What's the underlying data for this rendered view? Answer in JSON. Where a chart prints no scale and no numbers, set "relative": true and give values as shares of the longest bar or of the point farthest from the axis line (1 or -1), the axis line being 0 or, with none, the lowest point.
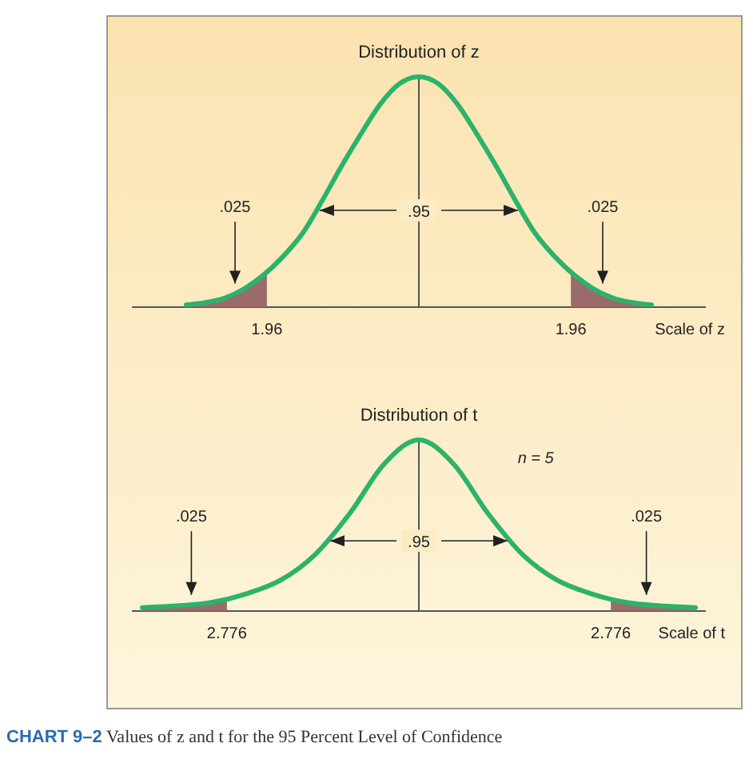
{
  "chart_data": [
    {
      "type": "line",
      "title": "Distribution of z",
      "xlabel": "Scale of z",
      "relative": true,
      "xlim": [
        -3.7,
        3.7
      ],
      "xticks": [
        {
          "value": -1.96,
          "label": "1.96"
        },
        1.96
      ],
      "series": [
        {
          "color": "#2bb36a",
          "x": [
            -3,
            -2.75,
            -2.5,
            -2.25,
            -2,
            -1.75,
            -1.5,
            -1.25,
            -1,
            -0.75,
            -0.5,
            -0.25,
            0,
            0.25,
            0.5,
            0.75,
            1,
            1.25,
            1.5,
            1.75,
            2,
            2.25,
            2.5,
            2.75,
            3
          ],
          "values": [
            0.01,
            0.02,
            0.04,
            0.08,
            0.14,
            0.22,
            0.32,
            0.46,
            0.61,
            0.75,
            0.88,
            0.97,
            1,
            0.97,
            0.88,
            0.75,
            0.61,
            0.46,
            0.32,
            0.22,
            0.14,
            0.08,
            0.04,
            0.02,
            0.01
          ]
        },
        {
          "type": "area",
          "color": "#9a6b6b",
          "x": [
            -3,
            -2.75,
            -2.5,
            -2.25,
            -1.96
          ],
          "values": [
            0.01,
            0.02,
            0.04,
            0.08,
            0.15
          ]
        },
        {
          "type": "area",
          "color": "#9a6b6b",
          "x": [
            1.96,
            2.25,
            2.5,
            2.75,
            3
          ],
          "values": [
            0.15,
            0.08,
            0.04,
            0.02,
            0.01
          ]
        }
      ],
      "ref_lines": [
        {
          "axis": "x",
          "value": 0,
          "color": "#555555"
        }
      ],
      "annotations": [
        ".025",
        ".95",
        ".025"
      ]
    },
    {
      "type": "line",
      "title": "Distribution of t",
      "xlabel": "Scale of t",
      "relative": true,
      "xlim": [
        -4.15,
        4.15
      ],
      "xticks": [
        {
          "value": -2.776,
          "label": "2.776"
        },
        2.776
      ],
      "series": [
        {
          "color": "#2bb36a",
          "x": [
            -4,
            -3.5,
            -3,
            -2.5,
            -2,
            -1.5,
            -1,
            -0.5,
            0,
            0.5,
            1,
            1.5,
            2,
            2.5,
            3,
            3.5,
            4
          ],
          "values": [
            0.02,
            0.03,
            0.05,
            0.1,
            0.18,
            0.33,
            0.57,
            0.86,
            1,
            0.86,
            0.57,
            0.33,
            0.18,
            0.1,
            0.05,
            0.03,
            0.02
          ]
        },
        {
          "type": "area",
          "color": "#9a6b6b",
          "x": [
            -4,
            -3.5,
            -3,
            -2.776
          ],
          "values": [
            0.02,
            0.03,
            0.05,
            0.07
          ]
        },
        {
          "type": "area",
          "color": "#9a6b6b",
          "x": [
            2.776,
            3,
            3.5,
            4
          ],
          "values": [
            0.07,
            0.05,
            0.03,
            0.02
          ]
        }
      ],
      "ref_lines": [
        {
          "axis": "x",
          "value": 0,
          "color": "#555555"
        }
      ],
      "annotations": [
        ".025",
        ".95",
        ".025",
        "n = 5",
        "CHART 9–2 Values of z and t for the 95 Percent Level of Confidence"
      ]
    }
  ]
}
